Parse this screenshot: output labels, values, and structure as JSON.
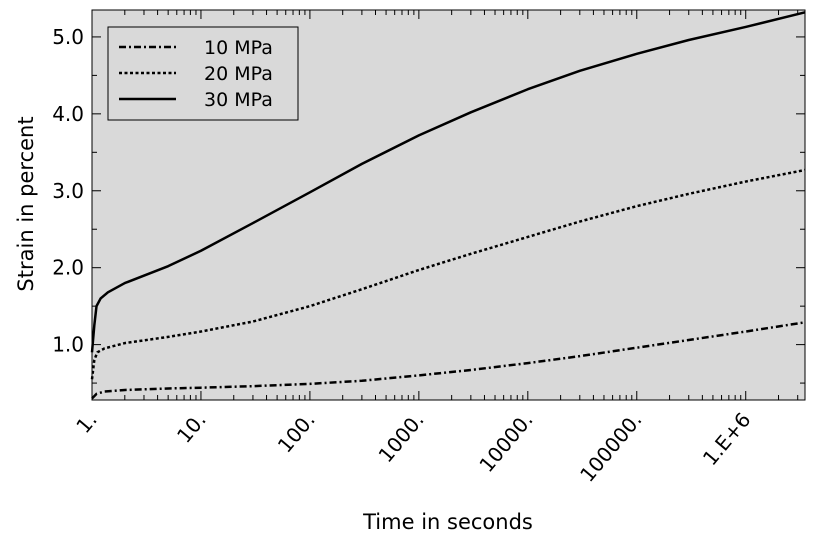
{
  "chart_data": {
    "type": "line",
    "title": "",
    "xlabel": "Time in seconds",
    "ylabel": "Strain in percent",
    "x_scale": "log",
    "xlim": [
      1,
      3500000
    ],
    "ylim": [
      0.28,
      5.35
    ],
    "x_ticks": [
      {
        "value": 1,
        "label": "1."
      },
      {
        "value": 10,
        "label": "10."
      },
      {
        "value": 100,
        "label": "100."
      },
      {
        "value": 1000,
        "label": "1000."
      },
      {
        "value": 10000,
        "label": "10000."
      },
      {
        "value": 100000,
        "label": "100000."
      },
      {
        "value": 1000000,
        "label": "1.E+6"
      }
    ],
    "y_ticks": [
      {
        "value": 1.0,
        "label": "1.0"
      },
      {
        "value": 2.0,
        "label": "2.0"
      },
      {
        "value": 3.0,
        "label": "3.0"
      },
      {
        "value": 4.0,
        "label": "4.0"
      },
      {
        "value": 5.0,
        "label": "5.0"
      }
    ],
    "grid": false,
    "legend_position": "top-left",
    "background_color": "#d9d9d9",
    "line_color": "#000000",
    "series": [
      {
        "name": "10 MPa",
        "dash": "dash-dot",
        "points": [
          [
            1,
            0.3
          ],
          [
            1.1,
            0.36
          ],
          [
            1.3,
            0.39
          ],
          [
            2,
            0.41
          ],
          [
            5,
            0.43
          ],
          [
            10,
            0.44
          ],
          [
            30,
            0.46
          ],
          [
            100,
            0.49
          ],
          [
            300,
            0.53
          ],
          [
            1000,
            0.6
          ],
          [
            3000,
            0.67
          ],
          [
            10000,
            0.76
          ],
          [
            30000,
            0.85
          ],
          [
            100000,
            0.96
          ],
          [
            300000,
            1.06
          ],
          [
            1000000,
            1.17
          ],
          [
            3500000,
            1.29
          ]
        ]
      },
      {
        "name": "20 MPa",
        "dash": "dotted",
        "points": [
          [
            1,
            0.55
          ],
          [
            1.05,
            0.8
          ],
          [
            1.12,
            0.9
          ],
          [
            1.3,
            0.95
          ],
          [
            2,
            1.02
          ],
          [
            5,
            1.1
          ],
          [
            10,
            1.17
          ],
          [
            30,
            1.3
          ],
          [
            100,
            1.5
          ],
          [
            300,
            1.72
          ],
          [
            1000,
            1.97
          ],
          [
            3000,
            2.18
          ],
          [
            10000,
            2.4
          ],
          [
            30000,
            2.6
          ],
          [
            100000,
            2.8
          ],
          [
            300000,
            2.96
          ],
          [
            1000000,
            3.12
          ],
          [
            3500000,
            3.27
          ]
        ]
      },
      {
        "name": "30 MPa",
        "dash": "solid",
        "points": [
          [
            1,
            0.9
          ],
          [
            1.05,
            1.25
          ],
          [
            1.1,
            1.5
          ],
          [
            1.2,
            1.6
          ],
          [
            1.4,
            1.68
          ],
          [
            2,
            1.8
          ],
          [
            5,
            2.02
          ],
          [
            10,
            2.22
          ],
          [
            30,
            2.58
          ],
          [
            100,
            2.98
          ],
          [
            300,
            3.35
          ],
          [
            1000,
            3.72
          ],
          [
            3000,
            4.02
          ],
          [
            10000,
            4.32
          ],
          [
            30000,
            4.56
          ],
          [
            100000,
            4.78
          ],
          [
            300000,
            4.96
          ],
          [
            1000000,
            5.13
          ],
          [
            3500000,
            5.32
          ]
        ]
      }
    ]
  }
}
